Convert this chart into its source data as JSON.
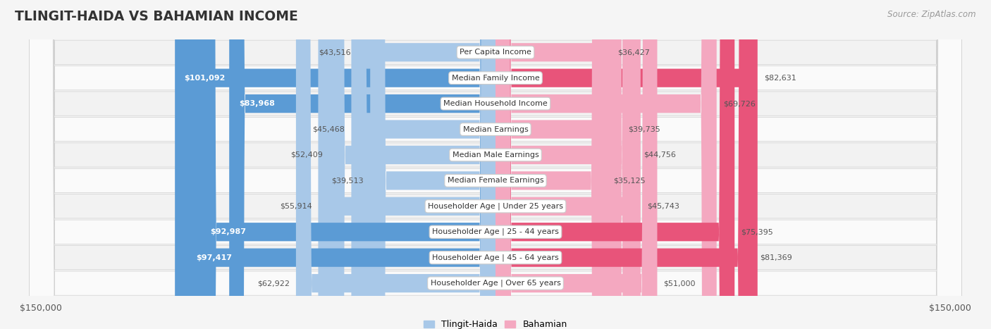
{
  "title": "TLINGIT-HAIDA VS BAHAMIAN INCOME",
  "source": "Source: ZipAtlas.com",
  "categories": [
    "Per Capita Income",
    "Median Family Income",
    "Median Household Income",
    "Median Earnings",
    "Median Male Earnings",
    "Median Female Earnings",
    "Householder Age | Under 25 years",
    "Householder Age | 25 - 44 years",
    "Householder Age | 45 - 64 years",
    "Householder Age | Over 65 years"
  ],
  "tlingit_values": [
    43516,
    101092,
    83968,
    45468,
    52409,
    39513,
    55914,
    92987,
    97417,
    62922
  ],
  "bahamian_values": [
    36427,
    82631,
    69726,
    39735,
    44756,
    35125,
    45743,
    75395,
    81369,
    51000
  ],
  "tlingit_labels": [
    "$43,516",
    "$101,092",
    "$83,968",
    "$45,468",
    "$52,409",
    "$39,513",
    "$55,914",
    "$92,987",
    "$97,417",
    "$62,922"
  ],
  "bahamian_labels": [
    "$36,427",
    "$82,631",
    "$69,726",
    "$39,735",
    "$44,756",
    "$35,125",
    "$45,743",
    "$75,395",
    "$81,369",
    "$51,000"
  ],
  "tlingit_color_dark": "#5b9bd5",
  "tlingit_color_light": "#a8c8e8",
  "bahamian_color_dark": "#e8547a",
  "bahamian_color_light": "#f4a8c0",
  "tlingit_inside_threshold": 75000,
  "bahamian_inside_threshold": 70000,
  "max_value": 150000,
  "background_color": "#f5f5f5",
  "row_bg_light": "#f2f2f2",
  "row_bg_dark": "#e8e8e8",
  "legend_tlingit": "Tlingit-Haida",
  "legend_bahamian": "Bahamian",
  "xlabel_left": "$150,000",
  "xlabel_right": "$150,000",
  "tlingit_dark_threshold": 75000,
  "bahamian_dark_threshold": 70000
}
